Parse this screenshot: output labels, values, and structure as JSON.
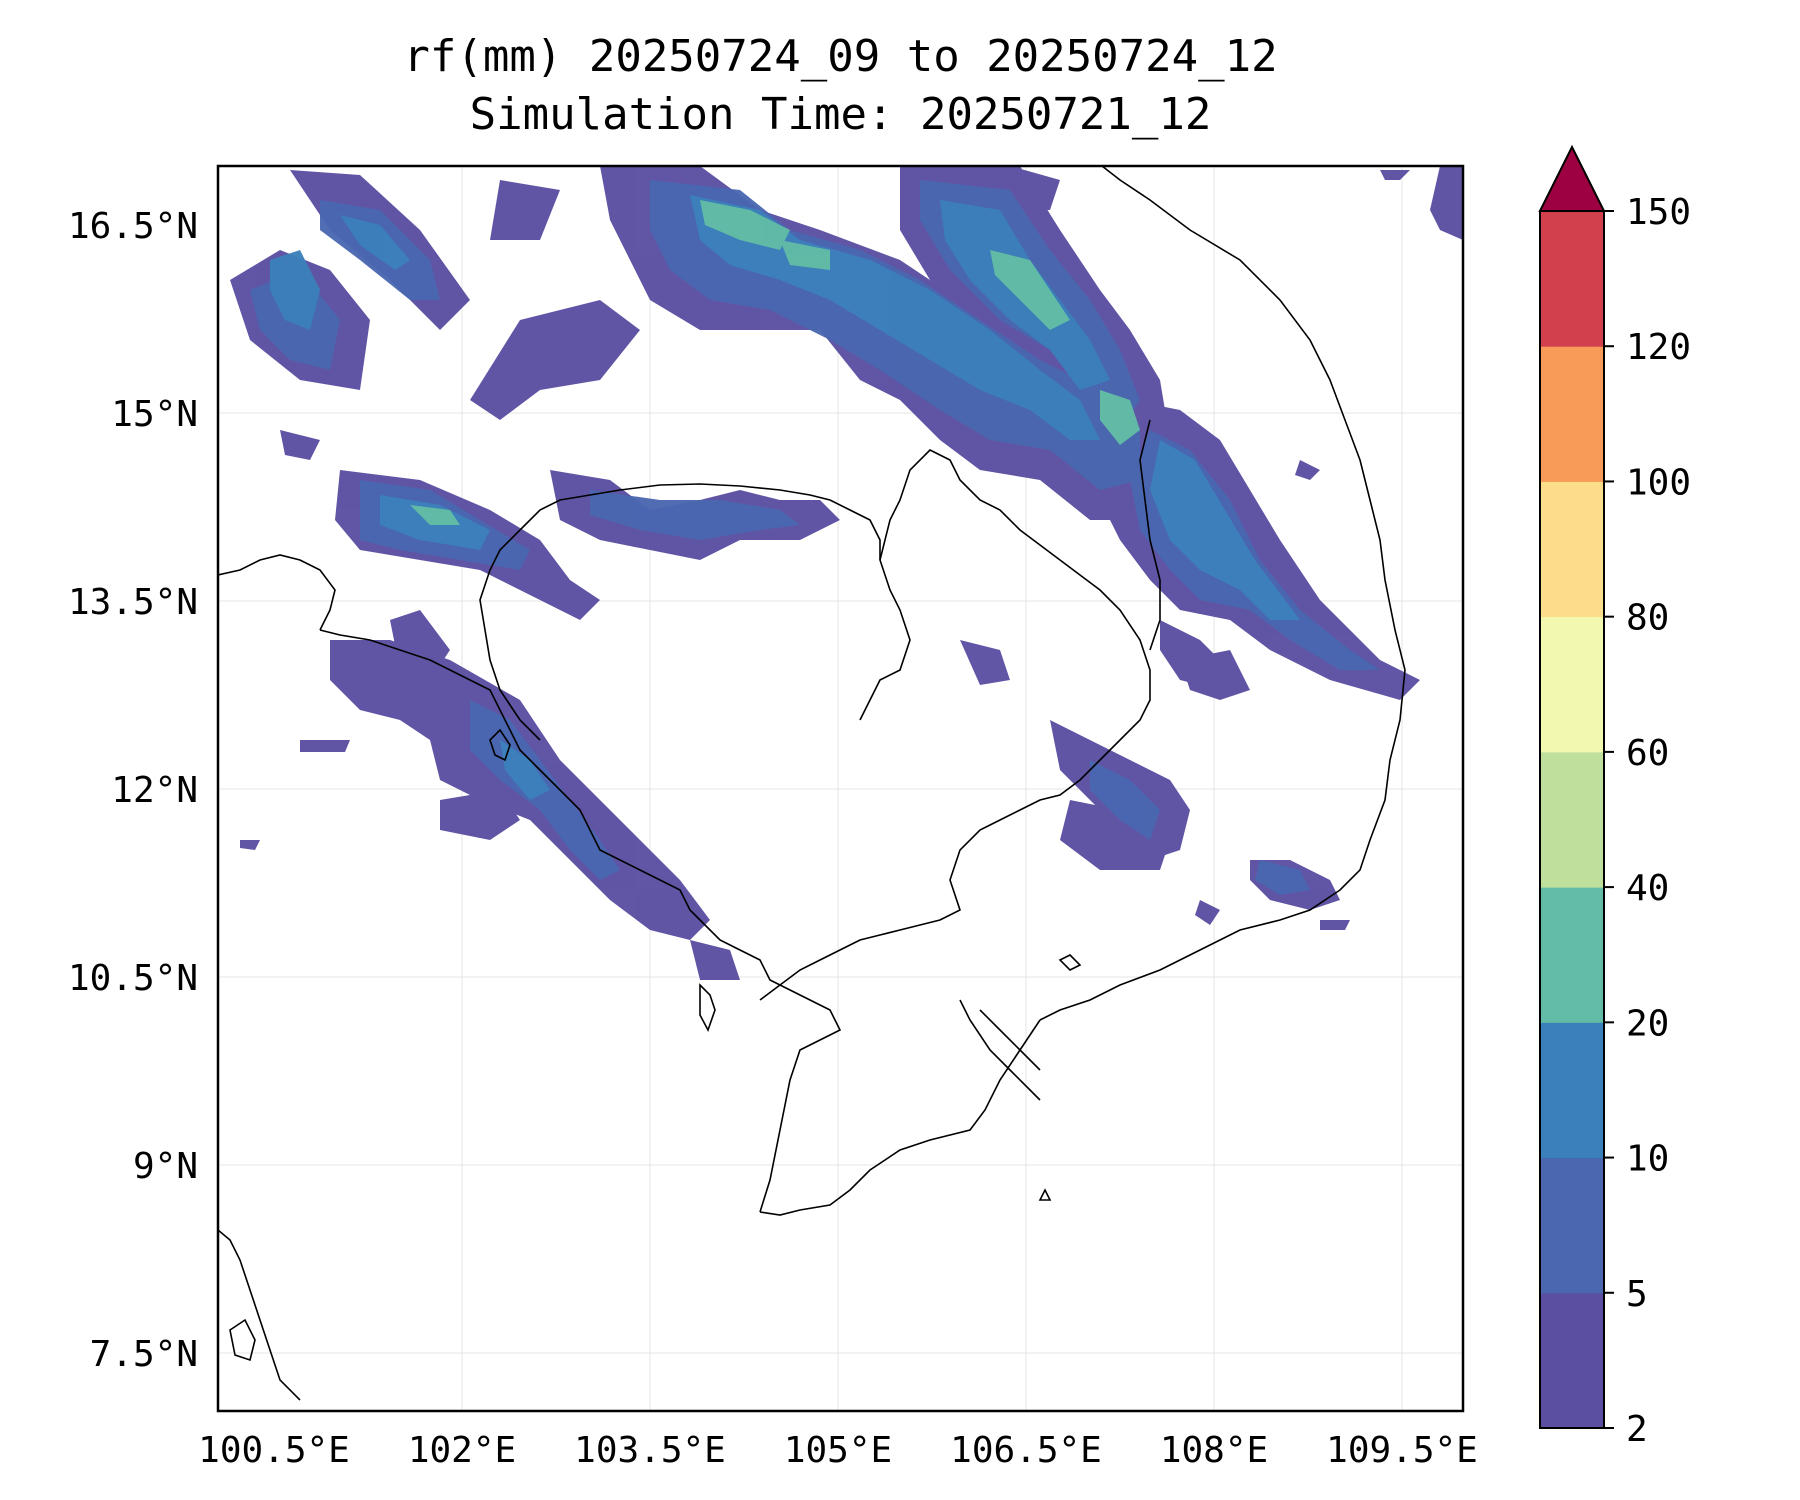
{
  "title": {
    "line1": "rf(mm) 20250724_09 to 20250724_12",
    "line2": "Simulation Time: 20250721_12"
  },
  "map": {
    "lon_ticks": [
      "100.5°E",
      "102°E",
      "103.5°E",
      "105°E",
      "106.5°E",
      "108°E",
      "109.5°E"
    ],
    "lat_ticks": [
      "16.5°N",
      "15°N",
      "13.5°N",
      "12°N",
      "10.5°N",
      "9°N",
      "7.5°N"
    ],
    "grid": true
  },
  "colorbar": {
    "levels": [
      "2",
      "5",
      "10",
      "20",
      "40",
      "60",
      "80",
      "100",
      "120",
      "150"
    ],
    "extend": "max",
    "colors": [
      "#5a4fa1",
      "#4a67b0",
      "#3b80ba",
      "#62bca6",
      "#bfe09d",
      "#f3f8b0",
      "#fcdd8b",
      "#f99b58",
      "#d3404d",
      "#9e0142"
    ]
  }
}
